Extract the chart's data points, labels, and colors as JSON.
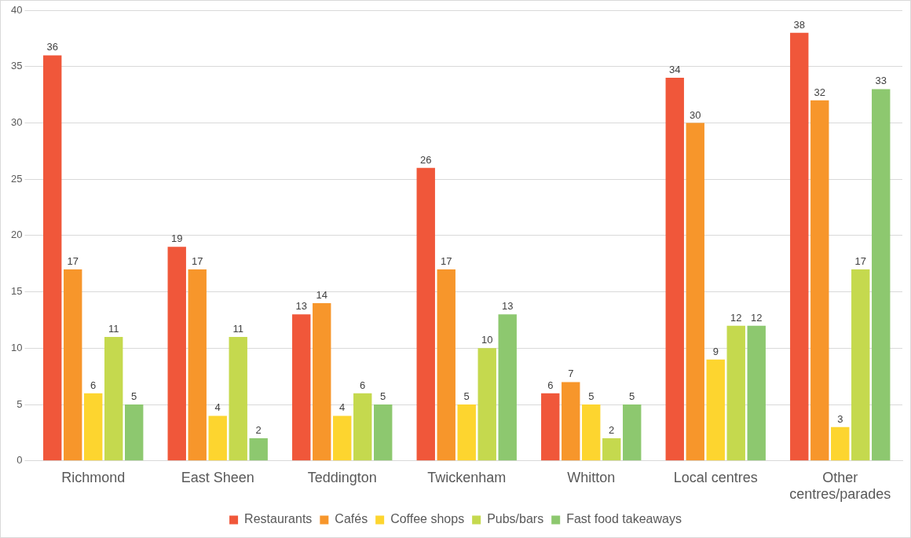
{
  "chart_data": {
    "type": "bar",
    "categories": [
      "Richmond",
      "East Sheen",
      "Teddington",
      "Twickenham",
      "Whitton",
      "Local centres",
      "Other centres/parades"
    ],
    "series": [
      {
        "name": "Restaurants",
        "color": "#f0573a",
        "values": [
          36,
          19,
          13,
          26,
          6,
          34,
          38
        ]
      },
      {
        "name": "Cafés",
        "color": "#f7962b",
        "values": [
          17,
          17,
          14,
          17,
          7,
          30,
          32
        ]
      },
      {
        "name": "Coffee shops",
        "color": "#fdd52f",
        "values": [
          6,
          4,
          4,
          5,
          5,
          9,
          3
        ]
      },
      {
        "name": "Pubs/bars",
        "color": "#c5d94e",
        "values": [
          11,
          11,
          6,
          10,
          2,
          12,
          17
        ]
      },
      {
        "name": "Fast food takeaways",
        "color": "#8dc86f",
        "values": [
          5,
          2,
          5,
          13,
          5,
          12,
          33
        ]
      }
    ],
    "ylim": [
      0,
      40
    ],
    "yticks": [
      0,
      5,
      10,
      15,
      20,
      25,
      30,
      35,
      40
    ],
    "grid": "y",
    "legend": "bottom",
    "data_labels": true
  }
}
